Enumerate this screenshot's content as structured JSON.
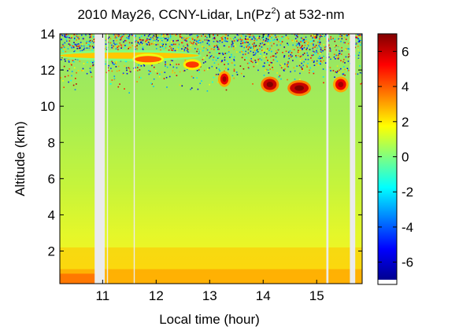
{
  "chart_data": {
    "type": "heatmap",
    "title": {
      "pre": "2010 May26, CCNY-Lidar, Ln(Pz",
      "sup": "2",
      "post": ") at 532-nm"
    },
    "xlabel": "Local time (hour)",
    "ylabel": "Altitude (km)",
    "xlim": [
      10.2,
      15.85
    ],
    "ylim": [
      0.2,
      14
    ],
    "xticks": [
      11,
      12,
      13,
      14,
      15
    ],
    "yticks": [
      2,
      4,
      6,
      8,
      10,
      12,
      14
    ],
    "colorbar": {
      "range": [
        -7,
        7
      ],
      "ticks": [
        6,
        4,
        2,
        0,
        -2,
        -4,
        -6
      ],
      "colormap": "jet"
    },
    "data_gaps_hours": [
      [
        10.85,
        11.04
      ],
      [
        11.08,
        11.1
      ],
      [
        11.58,
        11.6
      ],
      [
        15.18,
        15.22
      ],
      [
        15.62,
        15.72
      ]
    ],
    "cloud_features": [
      {
        "x_start": 10.2,
        "x_end": 12.8,
        "alt_km": 12.8,
        "value": 2.5
      },
      {
        "x_start": 11.6,
        "x_end": 12.1,
        "alt_km": 12.6,
        "value": 4
      },
      {
        "x_start": 12.55,
        "x_end": 12.8,
        "alt_km": 12.3,
        "value": 4.5
      },
      {
        "x_start": 13.2,
        "x_end": 13.35,
        "alt_km": 11.5,
        "value": 5.5
      },
      {
        "x_start": 14.0,
        "x_end": 14.25,
        "alt_km": 11.2,
        "value": 6
      },
      {
        "x_start": 14.5,
        "x_end": 14.85,
        "alt_km": 11.0,
        "value": 6
      },
      {
        "x_start": 15.35,
        "x_end": 15.55,
        "alt_km": 11.2,
        "value": 5.5
      }
    ]
  }
}
